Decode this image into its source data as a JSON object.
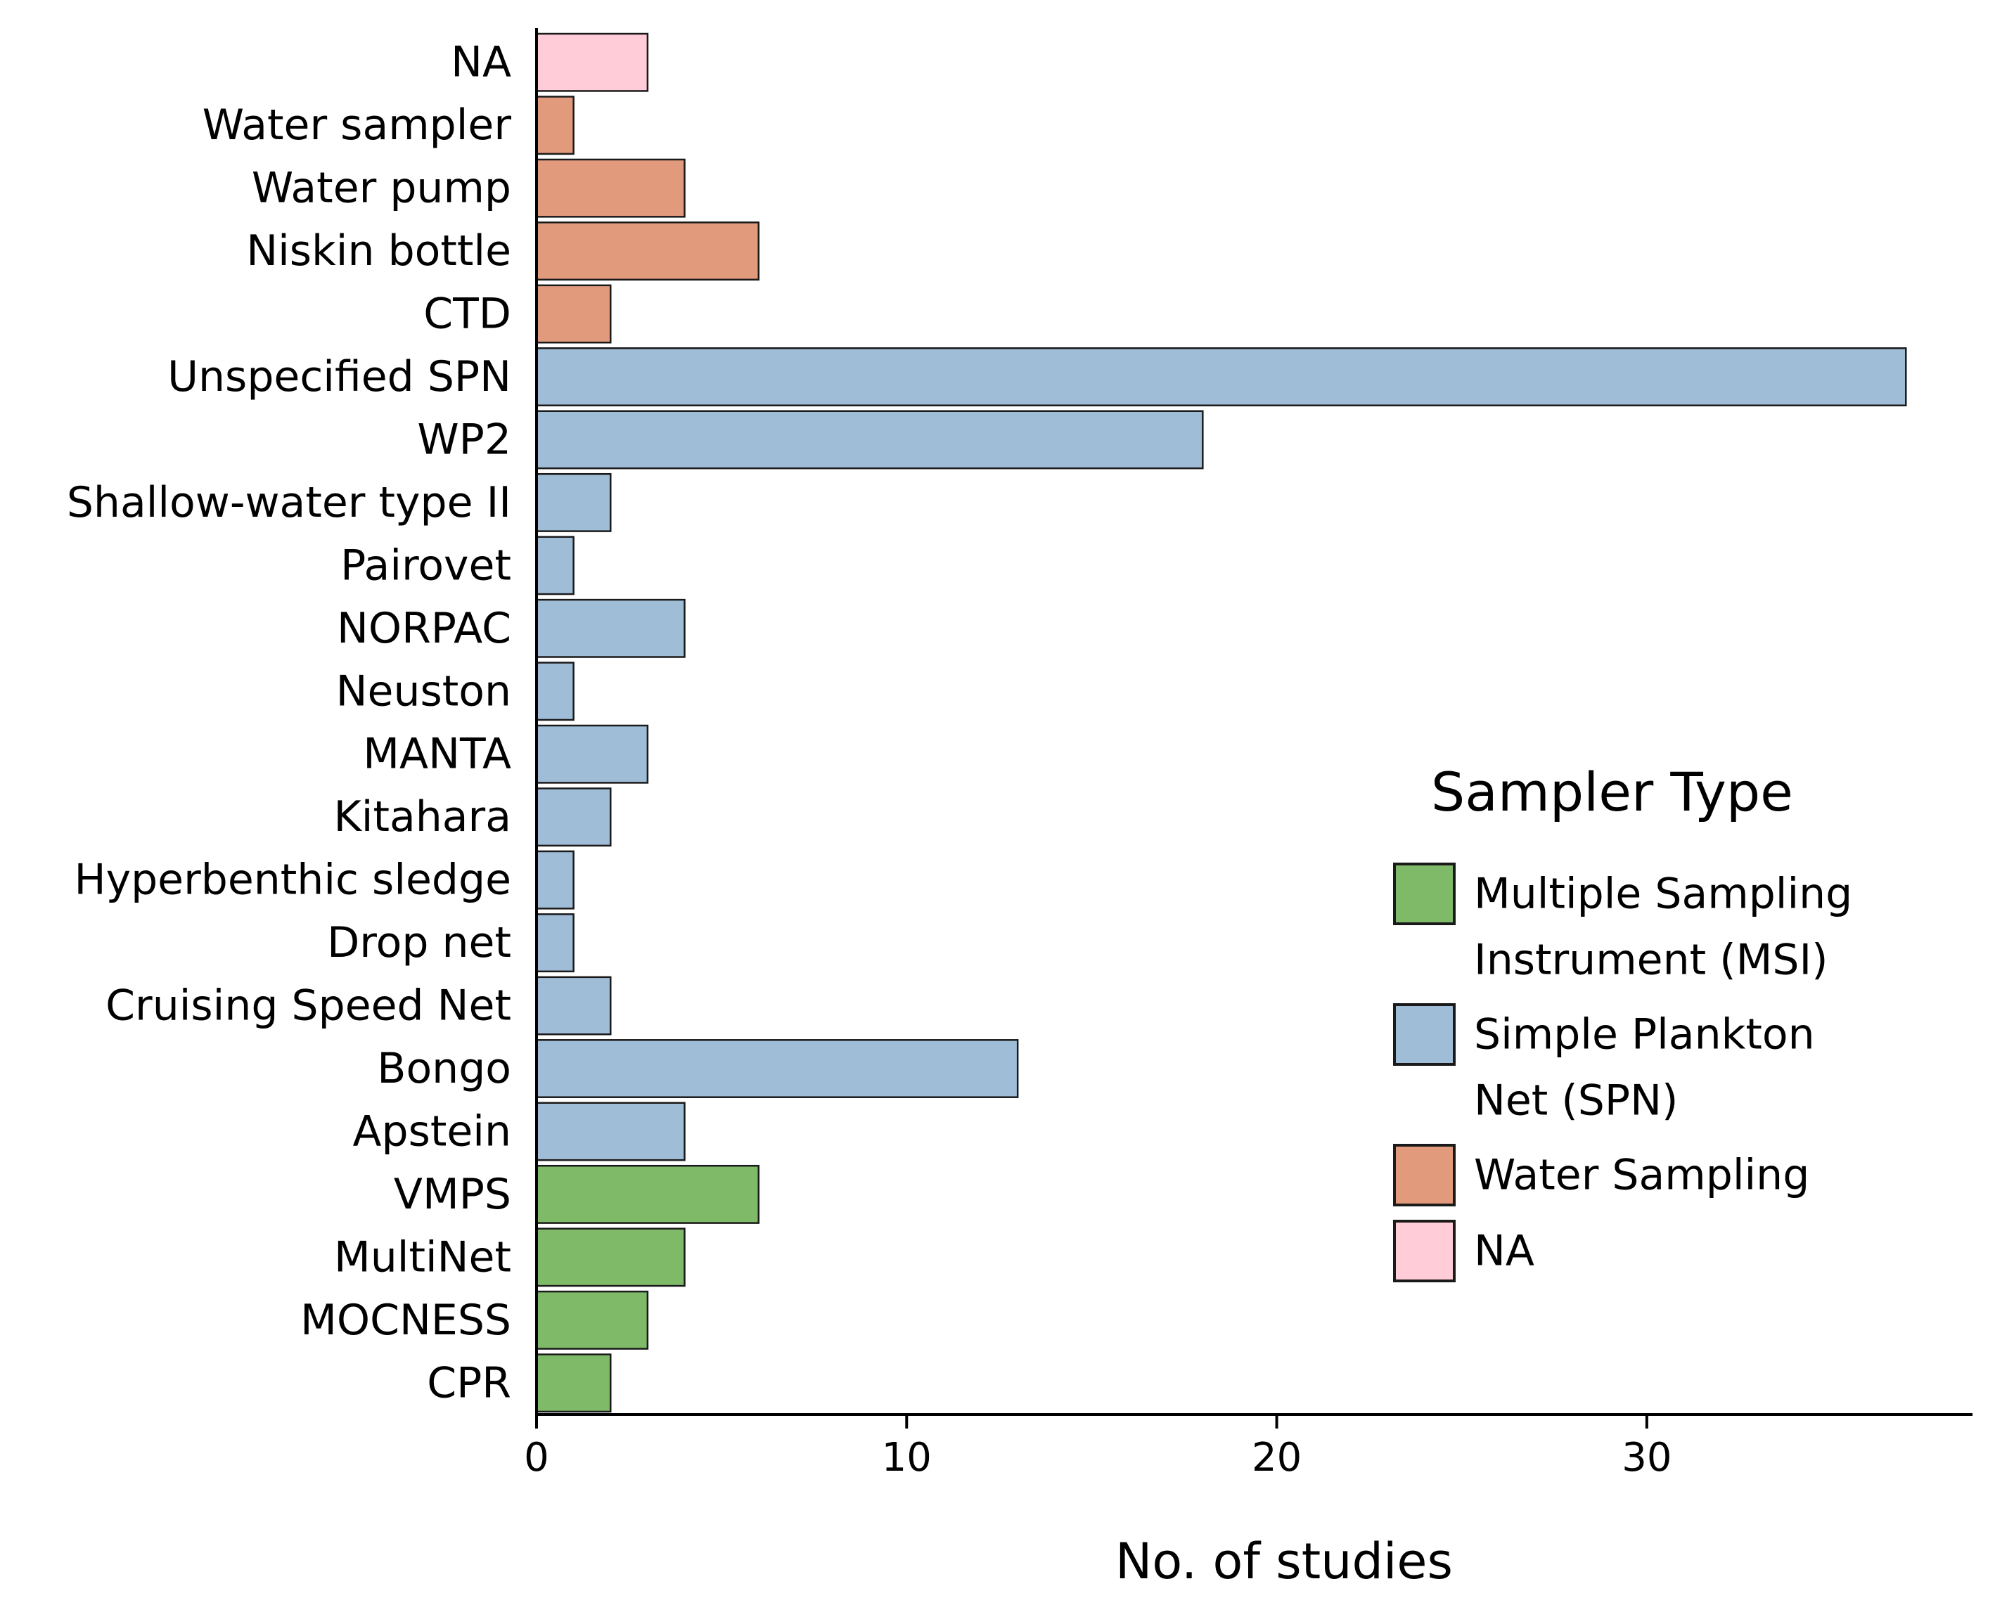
{
  "chart_data": {
    "type": "bar",
    "orientation": "horizontal",
    "xlabel": "No. of studies",
    "ylabel": "",
    "xlim": [
      0,
      38.8
    ],
    "xticks": [
      0,
      10,
      20,
      30
    ],
    "grid": false,
    "legend": {
      "title": "Sampler Type",
      "placement": "right",
      "entries": [
        {
          "key": "MSI",
          "lines": [
            "Multiple Sampling",
            "Instrument (MSI)"
          ],
          "color": "#7fba69"
        },
        {
          "key": "SPN",
          "lines": [
            "Simple Plankton",
            "Net (SPN)"
          ],
          "color": "#a0bdd8"
        },
        {
          "key": "WS",
          "lines": [
            "Water Sampling"
          ],
          "color": "#e19a7c"
        },
        {
          "key": "NA",
          "lines": [
            "NA"
          ],
          "color": "#ffccd7"
        }
      ]
    },
    "bars": [
      {
        "label": "NA",
        "value": 3,
        "group": "NA"
      },
      {
        "label": "Water sampler",
        "value": 1,
        "group": "WS"
      },
      {
        "label": "Water pump",
        "value": 4,
        "group": "WS"
      },
      {
        "label": "Niskin bottle",
        "value": 6,
        "group": "WS"
      },
      {
        "label": "CTD",
        "value": 2,
        "group": "WS"
      },
      {
        "label": "Unspecified SPN",
        "value": 37,
        "group": "SPN"
      },
      {
        "label": "WP2",
        "value": 18,
        "group": "SPN"
      },
      {
        "label": "Shallow-water type II",
        "value": 2,
        "group": "SPN"
      },
      {
        "label": "Pairovet",
        "value": 1,
        "group": "SPN"
      },
      {
        "label": "NORPAC",
        "value": 4,
        "group": "SPN"
      },
      {
        "label": "Neuston",
        "value": 1,
        "group": "SPN"
      },
      {
        "label": "MANTA",
        "value": 3,
        "group": "SPN"
      },
      {
        "label": "Kitahara",
        "value": 2,
        "group": "SPN"
      },
      {
        "label": "Hyperbenthic sledge",
        "value": 1,
        "group": "SPN"
      },
      {
        "label": "Drop net",
        "value": 1,
        "group": "SPN"
      },
      {
        "label": "Cruising Speed Net",
        "value": 2,
        "group": "SPN"
      },
      {
        "label": "Bongo",
        "value": 13,
        "group": "SPN"
      },
      {
        "label": "Apstein",
        "value": 4,
        "group": "SPN"
      },
      {
        "label": "VMPS",
        "value": 6,
        "group": "MSI"
      },
      {
        "label": "MultiNet",
        "value": 4,
        "group": "MSI"
      },
      {
        "label": "MOCNESS",
        "value": 3,
        "group": "MSI"
      },
      {
        "label": "CPR",
        "value": 2,
        "group": "MSI"
      }
    ]
  }
}
